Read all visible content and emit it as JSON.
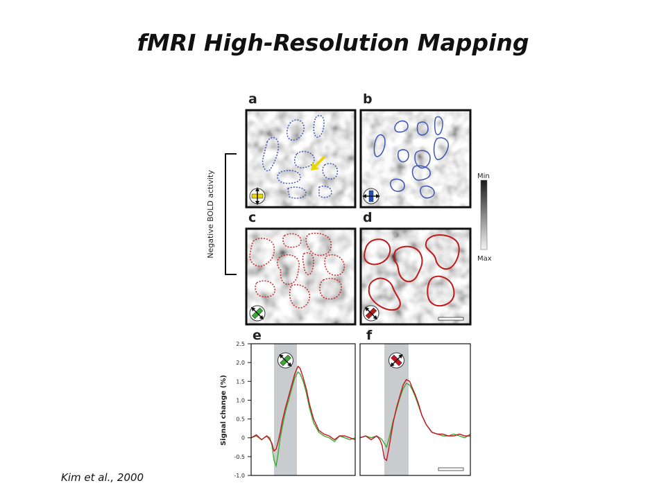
{
  "slide": {
    "title": "fMRI High-Resolution Mapping",
    "citation": "Kim et al., 2000"
  },
  "figure": {
    "panel_labels": [
      "a",
      "b",
      "c",
      "d",
      "e",
      "f"
    ],
    "bracket_label": "Negative BOLD activity",
    "colorbar": {
      "min_label": "Min",
      "max_label": "Max"
    },
    "panels": [
      {
        "id": "a",
        "outline_color": "#3a55b4",
        "outline_style": "dotted",
        "icon": "vertical-orientation-icon",
        "icon_color": "#e8d800"
      },
      {
        "id": "b",
        "outline_color": "#3a55b4",
        "outline_style": "solid",
        "icon": "horizontal-orientation-icon",
        "icon_color": "#2050c0"
      },
      {
        "id": "c",
        "outline_color": "#d02020",
        "outline_style": "dotted",
        "icon": "diagonal-orientation-icon",
        "icon_color": "#30b030"
      },
      {
        "id": "d",
        "outline_color": "#c01818",
        "outline_style": "solid",
        "icon": "diagonal-orientation-icon",
        "icon_color": "#c01818"
      }
    ]
  },
  "chart_data": {
    "type": "line",
    "ylabel": "Signal change (%)",
    "ylim": [
      -1.0,
      2.5
    ],
    "yticks": [
      "2.5",
      "2.0",
      "1.5",
      "1.0",
      "0.5",
      "0",
      "-0.5",
      "-1.0"
    ],
    "ytick_values": [
      2.5,
      2.0,
      1.5,
      1.0,
      0.5,
      0,
      -0.5,
      -1.0
    ],
    "xlim": [
      0,
      100
    ],
    "stimulus_window": [
      22,
      44
    ],
    "colors": {
      "green": "#3aaa35",
      "red": "#c8101e",
      "stimulus": "#c8ccce"
    },
    "panels": [
      {
        "id": "e",
        "x": [
          0,
          5,
          10,
          15,
          18,
          20,
          22,
          24,
          26,
          28,
          30,
          33,
          36,
          39,
          42,
          45,
          47,
          50,
          53,
          56,
          60,
          65,
          70,
          75,
          80,
          85,
          90,
          95,
          100
        ],
        "series": [
          {
            "color": "green",
            "values": [
              0,
              0.05,
              -0.05,
              0.05,
              0,
              -0.2,
              -0.6,
              -0.75,
              -0.4,
              0,
              0.3,
              0.7,
              1.0,
              1.3,
              1.6,
              1.75,
              1.7,
              1.5,
              1.2,
              0.8,
              0.4,
              0.15,
              0.05,
              0,
              -0.1,
              0.05,
              0,
              -0.05,
              0
            ]
          },
          {
            "color": "red",
            "values": [
              0,
              0.08,
              -0.05,
              0.05,
              -0.05,
              -0.15,
              -0.35,
              -0.3,
              -0.1,
              0.15,
              0.45,
              0.8,
              1.1,
              1.4,
              1.7,
              1.9,
              1.85,
              1.6,
              1.3,
              0.9,
              0.5,
              0.2,
              0.1,
              0.05,
              -0.05,
              0.05,
              0.05,
              0,
              -0.05
            ]
          }
        ]
      },
      {
        "id": "f",
        "x": [
          0,
          5,
          10,
          15,
          18,
          20,
          22,
          24,
          26,
          28,
          30,
          33,
          36,
          39,
          42,
          45,
          47,
          50,
          53,
          56,
          60,
          65,
          70,
          75,
          80,
          85,
          90,
          95,
          100
        ],
        "series": [
          {
            "color": "green",
            "values": [
              0,
              0.05,
              0,
              0.05,
              0,
              -0.05,
              -0.15,
              -0.25,
              -0.05,
              0.2,
              0.45,
              0.75,
              1.05,
              1.3,
              1.45,
              1.4,
              1.3,
              1.1,
              0.85,
              0.6,
              0.35,
              0.15,
              0.1,
              0.05,
              0.05,
              0.1,
              0.05,
              0,
              0.1
            ]
          },
          {
            "color": "red",
            "values": [
              0,
              0.05,
              -0.05,
              0.05,
              -0.05,
              -0.2,
              -0.55,
              -0.6,
              -0.3,
              0.05,
              0.4,
              0.8,
              1.1,
              1.4,
              1.55,
              1.5,
              1.35,
              1.15,
              0.9,
              0.6,
              0.35,
              0.15,
              0.1,
              0.1,
              0.05,
              0.05,
              0.1,
              0.05,
              0.05
            ]
          }
        ]
      }
    ]
  }
}
